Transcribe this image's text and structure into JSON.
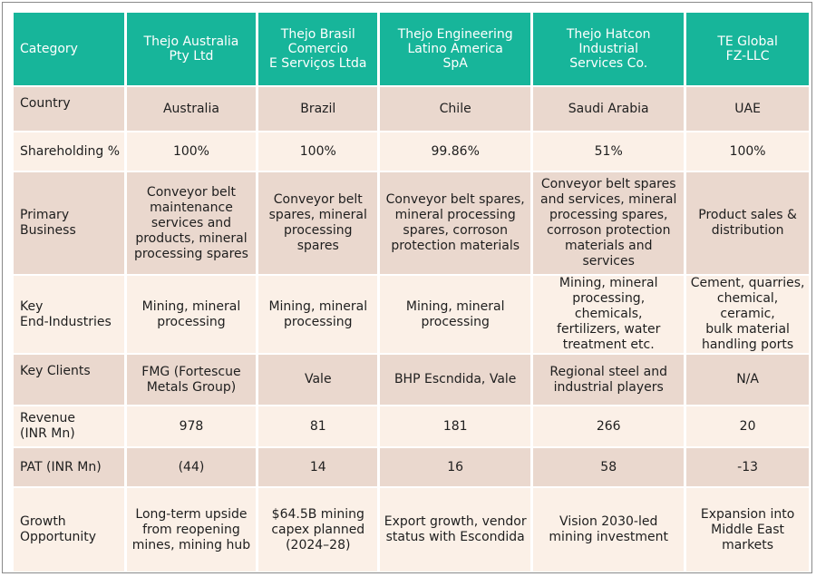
{
  "header": {
    "category": "Category",
    "companies": [
      "Thejo Australia\nPty Ltd",
      "Thejo Brasil\nComercio\nE Serviços Ltda",
      "Thejo Engineering\nLatino America\nSpA",
      "Thejo Hatcon\nIndustrial\nServices Co.",
      "TE Global\nFZ-LLC"
    ]
  },
  "rows": [
    {
      "label": "Country",
      "values": [
        "Australia",
        "Brazil",
        "Chile",
        "Saudi Arabia",
        "UAE"
      ]
    },
    {
      "label": "Shareholding %",
      "values": [
        "100%",
        "100%",
        "99.86%",
        "51%",
        "100%"
      ]
    },
    {
      "label": "Primary\nBusiness",
      "values": [
        "Conveyor belt\nmaintenance\nservices and\nproducts, mineral\nprocessing spares",
        "Conveyor belt\nspares, mineral\nprocessing\nspares",
        "Conveyor belt spares,\nmineral processing\nspares, corroson\nprotection materials",
        "Conveyor belt spares\nand services, mineral\nprocessing spares,\ncorroson protection\nmaterials and services",
        "Product sales &\ndistribution"
      ]
    },
    {
      "label": "Key\nEnd-Industries",
      "values": [
        "Mining, mineral\nprocessing",
        "Mining, mineral\nprocessing",
        "Mining, mineral\nprocessing",
        "Mining, mineral\nprocessing, chemicals,\nfertilizers, water\ntreatment etc.",
        "Cement, quarries,\nchemical, ceramic,\nbulk material\nhandling ports"
      ]
    },
    {
      "label": "Key Clients",
      "values": [
        "FMG (Fortescue\nMetals Group)",
        "Vale",
        "BHP Escndida, Vale",
        "Regional steel and\nindustrial players",
        "N/A"
      ]
    },
    {
      "label": "Revenue\n(INR Mn)",
      "values": [
        "978",
        "81",
        "181",
        "266",
        "20"
      ]
    },
    {
      "label": "PAT (INR Mn)",
      "values": [
        "(44)",
        "14",
        "16",
        "58",
        "-13"
      ]
    },
    {
      "label": "Growth\nOpportunity",
      "values": [
        "Long-term upside\nfrom reopening\nmines, mining hub",
        "$64.5B mining\ncapex planned\n(2024–28)",
        "Export growth, vendor\nstatus with Escondida",
        "Vision 2030-led\nmining investment",
        "Expansion into\nMiddle East\nmarkets"
      ]
    }
  ]
}
